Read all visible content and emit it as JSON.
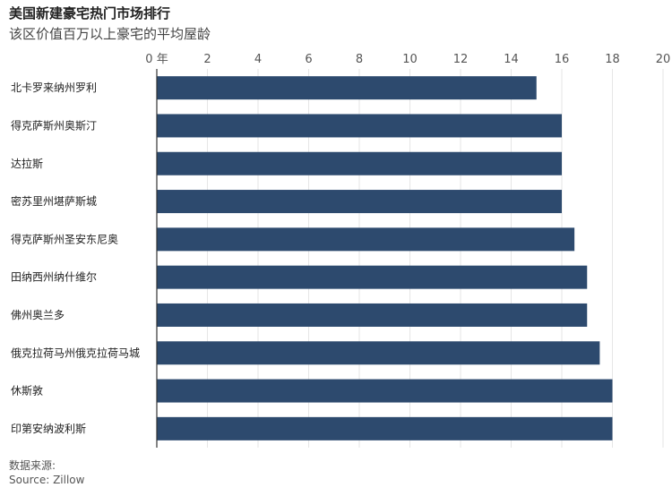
{
  "header": {
    "title": "美国新建豪宅热门市场排行",
    "subtitle": "该区价值百万以上豪宅的平均屋龄"
  },
  "footer": {
    "source_cn": "数据来源:",
    "source_en": "Source: Zillow"
  },
  "colors": {
    "bar": "#2d4a6e",
    "grid": "#e6e6e6",
    "axis": "#333333"
  },
  "chart_data": {
    "type": "bar",
    "orientation": "horizontal",
    "title": "美国新建豪宅热门市场排行",
    "subtitle": "该区价值百万以上豪宅的平均屋龄",
    "categories": [
      "北卡罗来纳州罗利",
      "得克萨斯州奥斯汀",
      "达拉斯",
      "密苏里州堪萨斯城",
      "得克萨斯州圣安东尼奥",
      "田纳西州纳什维尔",
      "佛州奥兰多",
      "俄克拉荷马州俄克拉荷马城",
      "休斯敦",
      "印第安纳波利斯"
    ],
    "values": [
      15,
      16,
      16,
      16,
      16.5,
      17,
      17,
      17.5,
      18,
      18
    ],
    "xlim": [
      0,
      20
    ],
    "ticks": [
      0,
      2,
      4,
      6,
      8,
      10,
      12,
      14,
      16,
      18,
      20
    ],
    "first_tick_label": "0 年",
    "grid": true,
    "axis_position": "top"
  }
}
